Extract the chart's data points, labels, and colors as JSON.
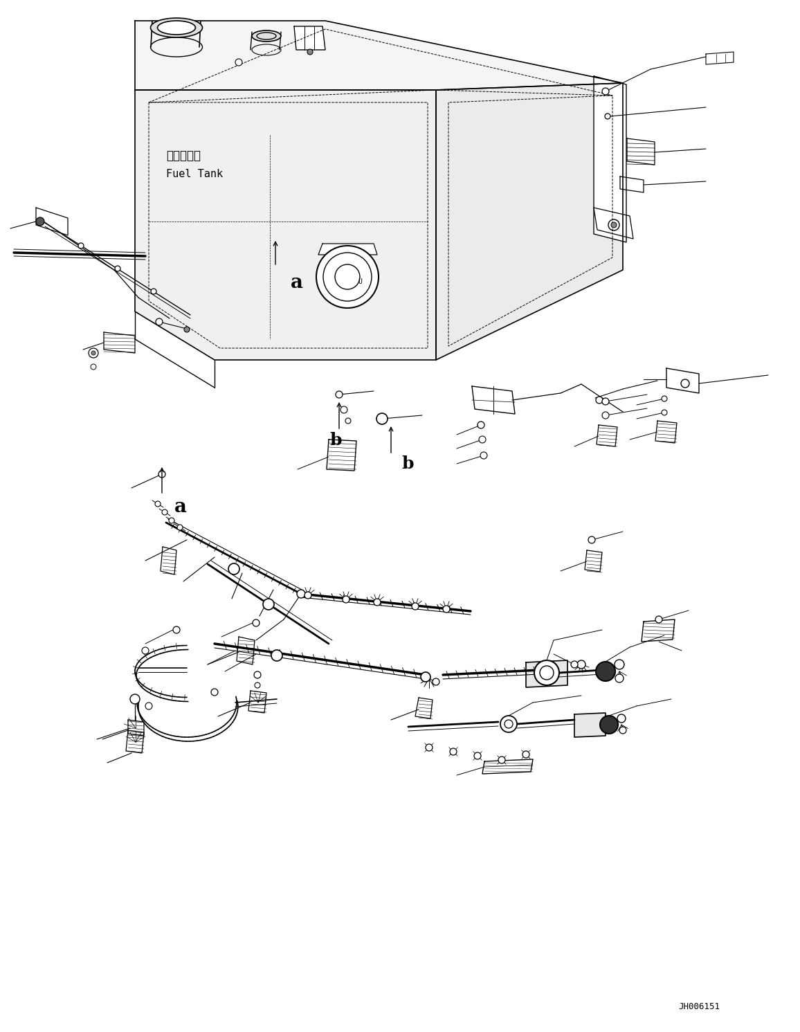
{
  "background_color": "#ffffff",
  "line_color": "#000000",
  "watermark_text": "JH006151",
  "label_a": "a",
  "label_b": "b",
  "fuel_tank_jp": "燃料タンク",
  "fuel_tank_en": "Fuel Tank",
  "figsize": [
    11.56,
    14.91
  ],
  "dpi": 100
}
